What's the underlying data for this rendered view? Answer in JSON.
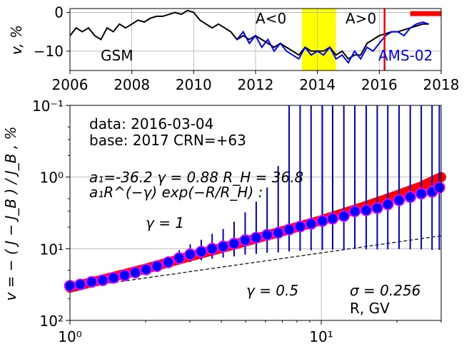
{
  "chart_data": [
    {
      "type": "line",
      "xlim": [
        2006,
        2018
      ],
      "ylim": [
        -15,
        1
      ],
      "xticks": [
        "2006",
        "2008",
        "2010",
        "2012",
        "2014",
        "2016",
        "2018"
      ],
      "yticks": [
        "0",
        "−10"
      ],
      "ylabel": "v, %",
      "grid": true,
      "shaded_period": {
        "from": 2013.5,
        "to": 2014.6,
        "color": "#ffff00"
      },
      "marker_line": {
        "x": 2016.17,
        "color": "#ff0000"
      },
      "marker_bar": {
        "from": 2017.0,
        "to": 2018.0,
        "y": -0.3,
        "color": "#ff0000"
      },
      "annotations": [
        "GSM",
        "A<0",
        "A>0",
        "AMS-02"
      ],
      "series": [
        {
          "name": "GSM",
          "color": "#000000",
          "x": [
            2006.0,
            2006.2,
            2006.4,
            2006.6,
            2006.8,
            2007.0,
            2007.2,
            2007.4,
            2007.6,
            2007.8,
            2008.0,
            2008.2,
            2008.4,
            2008.6,
            2008.8,
            2009.0,
            2009.2,
            2009.4,
            2009.6,
            2009.8,
            2010.0,
            2010.2,
            2010.4,
            2010.6,
            2010.8,
            2011.0,
            2011.2,
            2011.4,
            2011.6,
            2011.8,
            2012.0,
            2012.2,
            2012.4,
            2012.6,
            2012.8,
            2013.0,
            2013.2,
            2013.4,
            2013.6,
            2013.8,
            2014.0,
            2014.2,
            2014.4,
            2014.6,
            2014.8,
            2015.0,
            2015.2,
            2015.4,
            2015.6,
            2015.8,
            2016.0,
            2016.2,
            2016.4,
            2016.6,
            2016.8,
            2017.0,
            2017.2,
            2017.4,
            2017.6
          ],
          "y": [
            -6,
            -4,
            -5,
            -4,
            -6,
            -7,
            -4,
            -5,
            -3,
            -4,
            -3,
            -2,
            -2.5,
            -1.5,
            -1,
            -1,
            -0.5,
            0,
            -0.5,
            0.5,
            0,
            -2,
            -3,
            -4,
            -3,
            -4,
            -5,
            -7,
            -6,
            -7,
            -6,
            -7,
            -8,
            -9,
            -8,
            -9,
            -10,
            -11,
            -9,
            -10,
            -10,
            -10,
            -9,
            -11,
            -10,
            -12,
            -11,
            -11,
            -8,
            -7,
            -6,
            -5.5,
            -5,
            -5,
            -4.5,
            -4,
            -3.5,
            -3,
            -3
          ]
        },
        {
          "name": "AMS-02",
          "color": "#0000ff",
          "x": [
            2011.4,
            2011.6,
            2011.8,
            2012.0,
            2012.2,
            2012.4,
            2012.6,
            2012.8,
            2013.0,
            2013.2,
            2013.4,
            2013.6,
            2013.8,
            2014.0,
            2014.2,
            2014.4,
            2014.6,
            2014.8,
            2015.0,
            2015.2,
            2015.4,
            2015.6,
            2015.8,
            2016.0,
            2016.2,
            2016.4,
            2016.6,
            2016.8,
            2017.0,
            2017.2,
            2017.4,
            2017.6
          ],
          "y": [
            -7,
            -5,
            -8,
            -6,
            -9,
            -7,
            -10,
            -8,
            -10,
            -11,
            -12,
            -9,
            -11,
            -10,
            -11,
            -9,
            -12,
            -11,
            -13,
            -10,
            -12,
            -9,
            -10,
            -8,
            -6,
            -5,
            -5,
            -6,
            -4,
            -3,
            -2.5,
            -3
          ]
        }
      ]
    },
    {
      "type": "scatter",
      "xscale": "log",
      "yscale": "log",
      "yaxis_inverted": true,
      "xlim": [
        1,
        30
      ],
      "ylim": [
        100,
        0.1
      ],
      "xticks": [
        "10⁰",
        "10¹"
      ],
      "yticks": [
        "10⁻¹",
        "10⁰",
        "10¹",
        "10²"
      ],
      "ylabel": "v = − ( J − J_B ) / J_B , %",
      "xlabel": "R, GV",
      "grid": true,
      "annotations": {
        "data_date": "data: 2016-03-04",
        "base": "base: 2017   CRN=+63",
        "fit_params": "a₁=-36.2  γ = 0.88  R_H = 36.8",
        "fit_formula": "a₁R^(−γ) exp(−R/R_H) :",
        "gamma1": "γ = 1",
        "gamma05": "γ = 0.5",
        "sigma": "σ = 0.256"
      },
      "fit_curve": {
        "name": "fit",
        "color": "#ff0000",
        "x": [
          1.0,
          1.5,
          2.0,
          3.0,
          4.0,
          5.0,
          7.0,
          10.0,
          15.0,
          20.0,
          25.0,
          30.0
        ],
        "y": [
          35.0,
          24.5,
          19.0,
          12.8,
          9.8,
          7.9,
          5.7,
          4.0,
          2.55,
          1.8,
          1.35,
          1.0
        ]
      },
      "reference_line": {
        "name": "γ = 0.5",
        "x": [
          1,
          30
        ],
        "y": [
          36.2,
          6.6
        ]
      },
      "series": [
        {
          "name": "AMS-02 points",
          "marker_color": "#0000ff",
          "edge_color": "#ff00ff",
          "x": [
            1.0,
            1.1,
            1.22,
            1.35,
            1.49,
            1.65,
            1.82,
            2.01,
            2.22,
            2.46,
            2.72,
            3.01,
            3.33,
            3.68,
            4.07,
            4.5,
            4.98,
            5.51,
            6.09,
            6.74,
            7.45,
            8.24,
            9.11,
            10.1,
            11.1,
            12.3,
            13.6,
            15.1,
            16.7,
            18.4,
            20.4,
            22.6,
            25.0,
            27.6,
            29.5
          ],
          "y": [
            33.0,
            31.5,
            29.0,
            27.5,
            25.5,
            23.5,
            21.5,
            19.5,
            17.5,
            15.5,
            13.5,
            12.0,
            11.0,
            10.0,
            9.3,
            8.5,
            7.6,
            7.0,
            6.4,
            6.0,
            5.4,
            4.9,
            4.5,
            4.1,
            3.8,
            3.5,
            3.0,
            2.9,
            2.7,
            2.4,
            2.1,
            1.9,
            1.7,
            1.6,
            1.4
          ],
          "err_low": [
            1.2,
            1.3,
            1.5,
            1.7,
            1.9,
            2.0,
            2.2,
            2.4,
            2.6,
            2.8,
            3.0,
            3.3,
            3.5,
            3.8,
            4.0,
            4.3,
            4.5,
            4.8,
            5.0,
            5.3,
            5.5,
            5.8,
            6.0,
            6.3,
            6.5,
            6.8,
            7.0,
            7.3,
            7.5,
            7.8,
            8.0,
            8.3,
            8.5,
            8.8,
            9.0
          ],
          "err_high": [
            1.2,
            1.3,
            1.5,
            1.7,
            1.9,
            2.0,
            2.2,
            2.4,
            2.6,
            2.8,
            3.0,
            3.3,
            3.5,
            3.8,
            4.0,
            4.3,
            4.5,
            4.8,
            5.0,
            5.3,
            5.5,
            5.8,
            6.0,
            6.3,
            6.5,
            6.8,
            7.0,
            7.3,
            7.5,
            7.8,
            8.0,
            8.3,
            8.5,
            8.8,
            9.0
          ]
        }
      ]
    }
  ]
}
